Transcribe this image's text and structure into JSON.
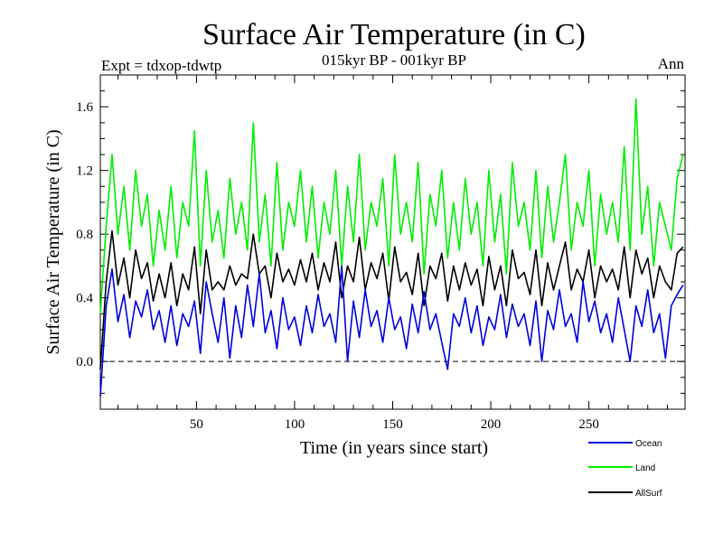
{
  "chart_data": {
    "type": "line",
    "title": "Surface Air Temperature (in C)",
    "subtitle": "015kyr BP - 001kyr BP",
    "left_label": "Expt = tdxop-tdwtp",
    "right_label": "Ann",
    "xlabel": "Time (in years since start)",
    "ylabel": "Surface Air Temperature (in C)",
    "xlim": [
      1,
      299
    ],
    "ylim": [
      -0.3,
      1.8
    ],
    "xticks": [
      50,
      100,
      150,
      200,
      250
    ],
    "yticks": [
      0.0,
      0.4,
      0.8,
      1.2,
      1.6
    ],
    "ytick_labels": [
      "0.0",
      "0.4",
      "0.8",
      "1.2",
      "1.6"
    ],
    "zero_line": 0.0,
    "series": [
      {
        "name": "Ocean",
        "color": "#0000dd",
        "x": [
          1,
          4,
          7,
          10,
          13,
          16,
          19,
          22,
          25,
          28,
          31,
          34,
          37,
          40,
          43,
          46,
          49,
          52,
          55,
          58,
          61,
          64,
          67,
          70,
          73,
          76,
          79,
          82,
          85,
          88,
          91,
          94,
          97,
          100,
          103,
          106,
          109,
          112,
          115,
          118,
          121,
          124,
          127,
          130,
          133,
          136,
          139,
          142,
          145,
          148,
          151,
          154,
          157,
          160,
          163,
          166,
          169,
          172,
          175,
          178,
          181,
          184,
          187,
          190,
          193,
          196,
          199,
          202,
          205,
          208,
          211,
          214,
          217,
          220,
          223,
          226,
          229,
          232,
          235,
          238,
          241,
          244,
          247,
          250,
          253,
          256,
          259,
          262,
          265,
          268,
          271,
          274,
          277,
          280,
          283,
          286,
          289,
          292,
          295,
          298
        ],
        "y": [
          -0.22,
          0.35,
          0.58,
          0.25,
          0.42,
          0.15,
          0.38,
          0.28,
          0.45,
          0.2,
          0.32,
          0.12,
          0.35,
          0.1,
          0.3,
          0.22,
          0.38,
          0.05,
          0.5,
          0.3,
          0.12,
          0.4,
          0.02,
          0.35,
          0.15,
          0.48,
          0.22,
          0.55,
          0.18,
          0.32,
          0.08,
          0.4,
          0.2,
          0.28,
          0.1,
          0.35,
          0.18,
          0.42,
          0.22,
          0.3,
          0.12,
          0.6,
          0.0,
          0.38,
          0.15,
          0.45,
          0.22,
          0.32,
          0.12,
          0.4,
          0.2,
          0.28,
          0.08,
          0.36,
          0.18,
          0.44,
          0.2,
          0.3,
          0.12,
          -0.05,
          0.3,
          0.22,
          0.4,
          0.18,
          0.35,
          0.1,
          0.28,
          0.2,
          0.42,
          0.15,
          0.36,
          0.22,
          0.3,
          0.1,
          0.38,
          0.0,
          0.32,
          0.2,
          0.45,
          0.22,
          0.3,
          0.12,
          0.5,
          0.25,
          0.38,
          0.18,
          0.3,
          0.12,
          0.4,
          0.2,
          0.0,
          0.35,
          0.22,
          0.45,
          0.18,
          0.3,
          0.02,
          0.35,
          0.42,
          0.48
        ]
      },
      {
        "name": "Land",
        "color": "#00ee00",
        "x": [
          1,
          4,
          7,
          10,
          13,
          16,
          19,
          22,
          25,
          28,
          31,
          34,
          37,
          40,
          43,
          46,
          49,
          52,
          55,
          58,
          61,
          64,
          67,
          70,
          73,
          76,
          79,
          82,
          85,
          88,
          91,
          94,
          97,
          100,
          103,
          106,
          109,
          112,
          115,
          118,
          121,
          124,
          127,
          130,
          133,
          136,
          139,
          142,
          145,
          148,
          151,
          154,
          157,
          160,
          163,
          166,
          169,
          172,
          175,
          178,
          181,
          184,
          187,
          190,
          193,
          196,
          199,
          202,
          205,
          208,
          211,
          214,
          217,
          220,
          223,
          226,
          229,
          232,
          235,
          238,
          241,
          244,
          247,
          250,
          253,
          256,
          259,
          262,
          265,
          268,
          271,
          274,
          277,
          280,
          283,
          286,
          289,
          292,
          295,
          298
        ],
        "y": [
          0.3,
          0.85,
          1.3,
          0.8,
          1.1,
          0.7,
          1.2,
          0.85,
          1.05,
          0.6,
          0.95,
          0.7,
          1.1,
          0.65,
          1.0,
          0.85,
          1.45,
          0.6,
          1.2,
          0.75,
          0.95,
          0.65,
          1.15,
          0.8,
          1.0,
          0.7,
          1.5,
          0.75,
          1.05,
          0.6,
          1.25,
          0.7,
          1.0,
          0.85,
          1.2,
          0.75,
          1.1,
          0.65,
          1.0,
          0.8,
          1.2,
          0.6,
          1.1,
          0.75,
          1.3,
          0.7,
          1.0,
          0.85,
          1.15,
          0.6,
          1.3,
          0.8,
          1.0,
          0.75,
          1.25,
          0.55,
          1.05,
          0.85,
          1.2,
          0.65,
          1.0,
          0.7,
          1.15,
          0.8,
          1.0,
          0.6,
          1.2,
          0.75,
          1.05,
          0.55,
          1.25,
          0.85,
          1.0,
          0.7,
          1.2,
          0.65,
          1.1,
          0.75,
          1.0,
          1.3,
          0.7,
          1.0,
          0.85,
          1.2,
          0.6,
          1.05,
          0.8,
          1.0,
          0.75,
          1.35,
          0.7,
          1.65,
          0.8,
          1.1,
          0.6,
          1.0,
          0.85,
          0.7,
          1.15,
          1.3
        ]
      },
      {
        "name": "AllSurf",
        "color": "#000000",
        "x": [
          1,
          4,
          7,
          10,
          13,
          16,
          19,
          22,
          25,
          28,
          31,
          34,
          37,
          40,
          43,
          46,
          49,
          52,
          55,
          58,
          61,
          64,
          67,
          70,
          73,
          76,
          79,
          82,
          85,
          88,
          91,
          94,
          97,
          100,
          103,
          106,
          109,
          112,
          115,
          118,
          121,
          124,
          127,
          130,
          133,
          136,
          139,
          142,
          145,
          148,
          151,
          154,
          157,
          160,
          163,
          166,
          169,
          172,
          175,
          178,
          181,
          184,
          187,
          190,
          193,
          196,
          199,
          202,
          205,
          208,
          211,
          214,
          217,
          220,
          223,
          226,
          229,
          232,
          235,
          238,
          241,
          244,
          247,
          250,
          253,
          256,
          259,
          262,
          265,
          268,
          271,
          274,
          277,
          280,
          283,
          286,
          289,
          292,
          295,
          298
        ],
        "y": [
          -0.05,
          0.5,
          0.82,
          0.48,
          0.65,
          0.4,
          0.7,
          0.52,
          0.62,
          0.38,
          0.55,
          0.4,
          0.62,
          0.35,
          0.55,
          0.45,
          0.72,
          0.3,
          0.7,
          0.45,
          0.5,
          0.45,
          0.6,
          0.48,
          0.55,
          0.52,
          0.8,
          0.55,
          0.6,
          0.4,
          0.68,
          0.5,
          0.58,
          0.48,
          0.64,
          0.5,
          0.68,
          0.45,
          0.62,
          0.5,
          0.75,
          0.4,
          0.6,
          0.5,
          0.78,
          0.45,
          0.62,
          0.52,
          0.68,
          0.38,
          0.72,
          0.5,
          0.56,
          0.42,
          0.68,
          0.35,
          0.6,
          0.52,
          0.68,
          0.38,
          0.6,
          0.45,
          0.62,
          0.48,
          0.58,
          0.35,
          0.66,
          0.45,
          0.6,
          0.35,
          0.7,
          0.52,
          0.56,
          0.42,
          0.7,
          0.35,
          0.62,
          0.45,
          0.6,
          0.75,
          0.45,
          0.58,
          0.5,
          0.7,
          0.4,
          0.6,
          0.5,
          0.58,
          0.45,
          0.72,
          0.4,
          0.7,
          0.55,
          0.65,
          0.4,
          0.6,
          0.5,
          0.45,
          0.68,
          0.72
        ]
      }
    ],
    "legend": {
      "placement": "bottom-right",
      "entries": [
        "Ocean",
        "Land",
        "AllSurf"
      ]
    }
  }
}
